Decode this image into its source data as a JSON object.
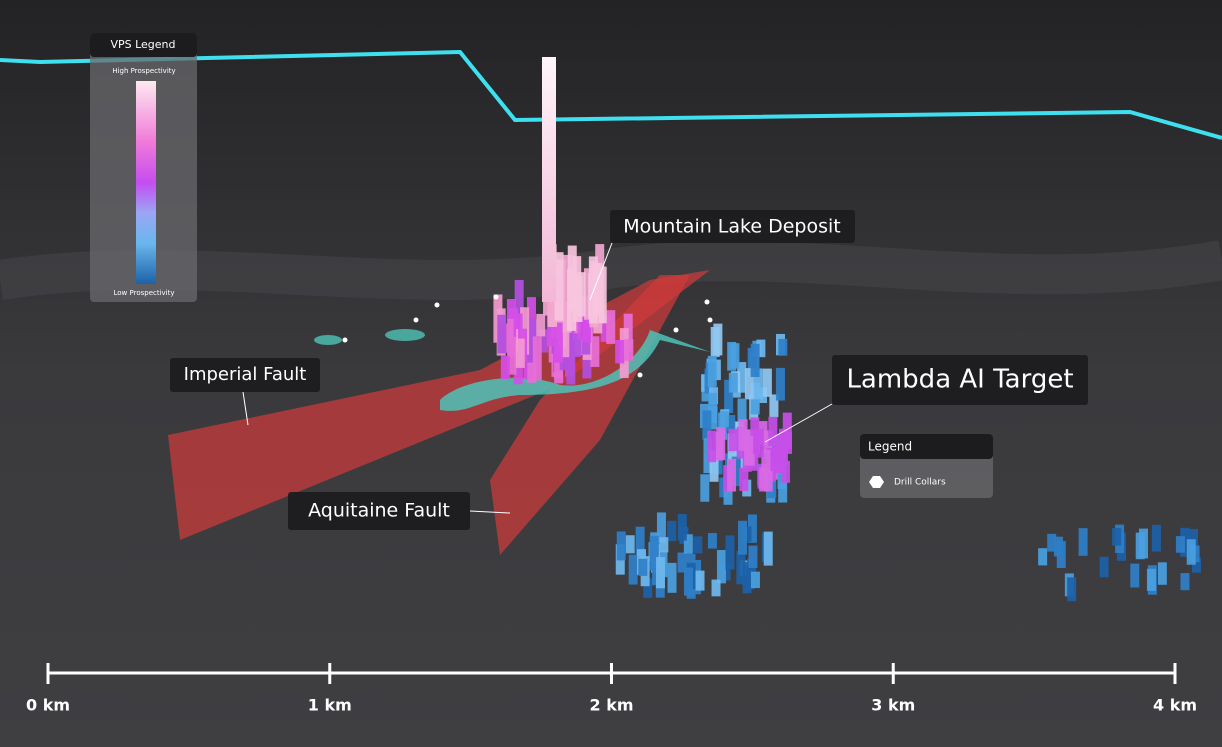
{
  "vps_legend": {
    "title": "VPS Legend",
    "high": "High Prospectivity",
    "low": "Low Prospectivity"
  },
  "annotations": [
    "Mountain Lake Deposit",
    "Imperial Fault",
    "Aquitaine Fault",
    "Lambda AI Target"
  ],
  "legend": {
    "title": "Legend",
    "items": [
      "Drill Collars"
    ]
  },
  "scale_bar": {
    "labels": [
      "0 km",
      "1 km",
      "2 km",
      "3 km",
      "4 km"
    ]
  }
}
